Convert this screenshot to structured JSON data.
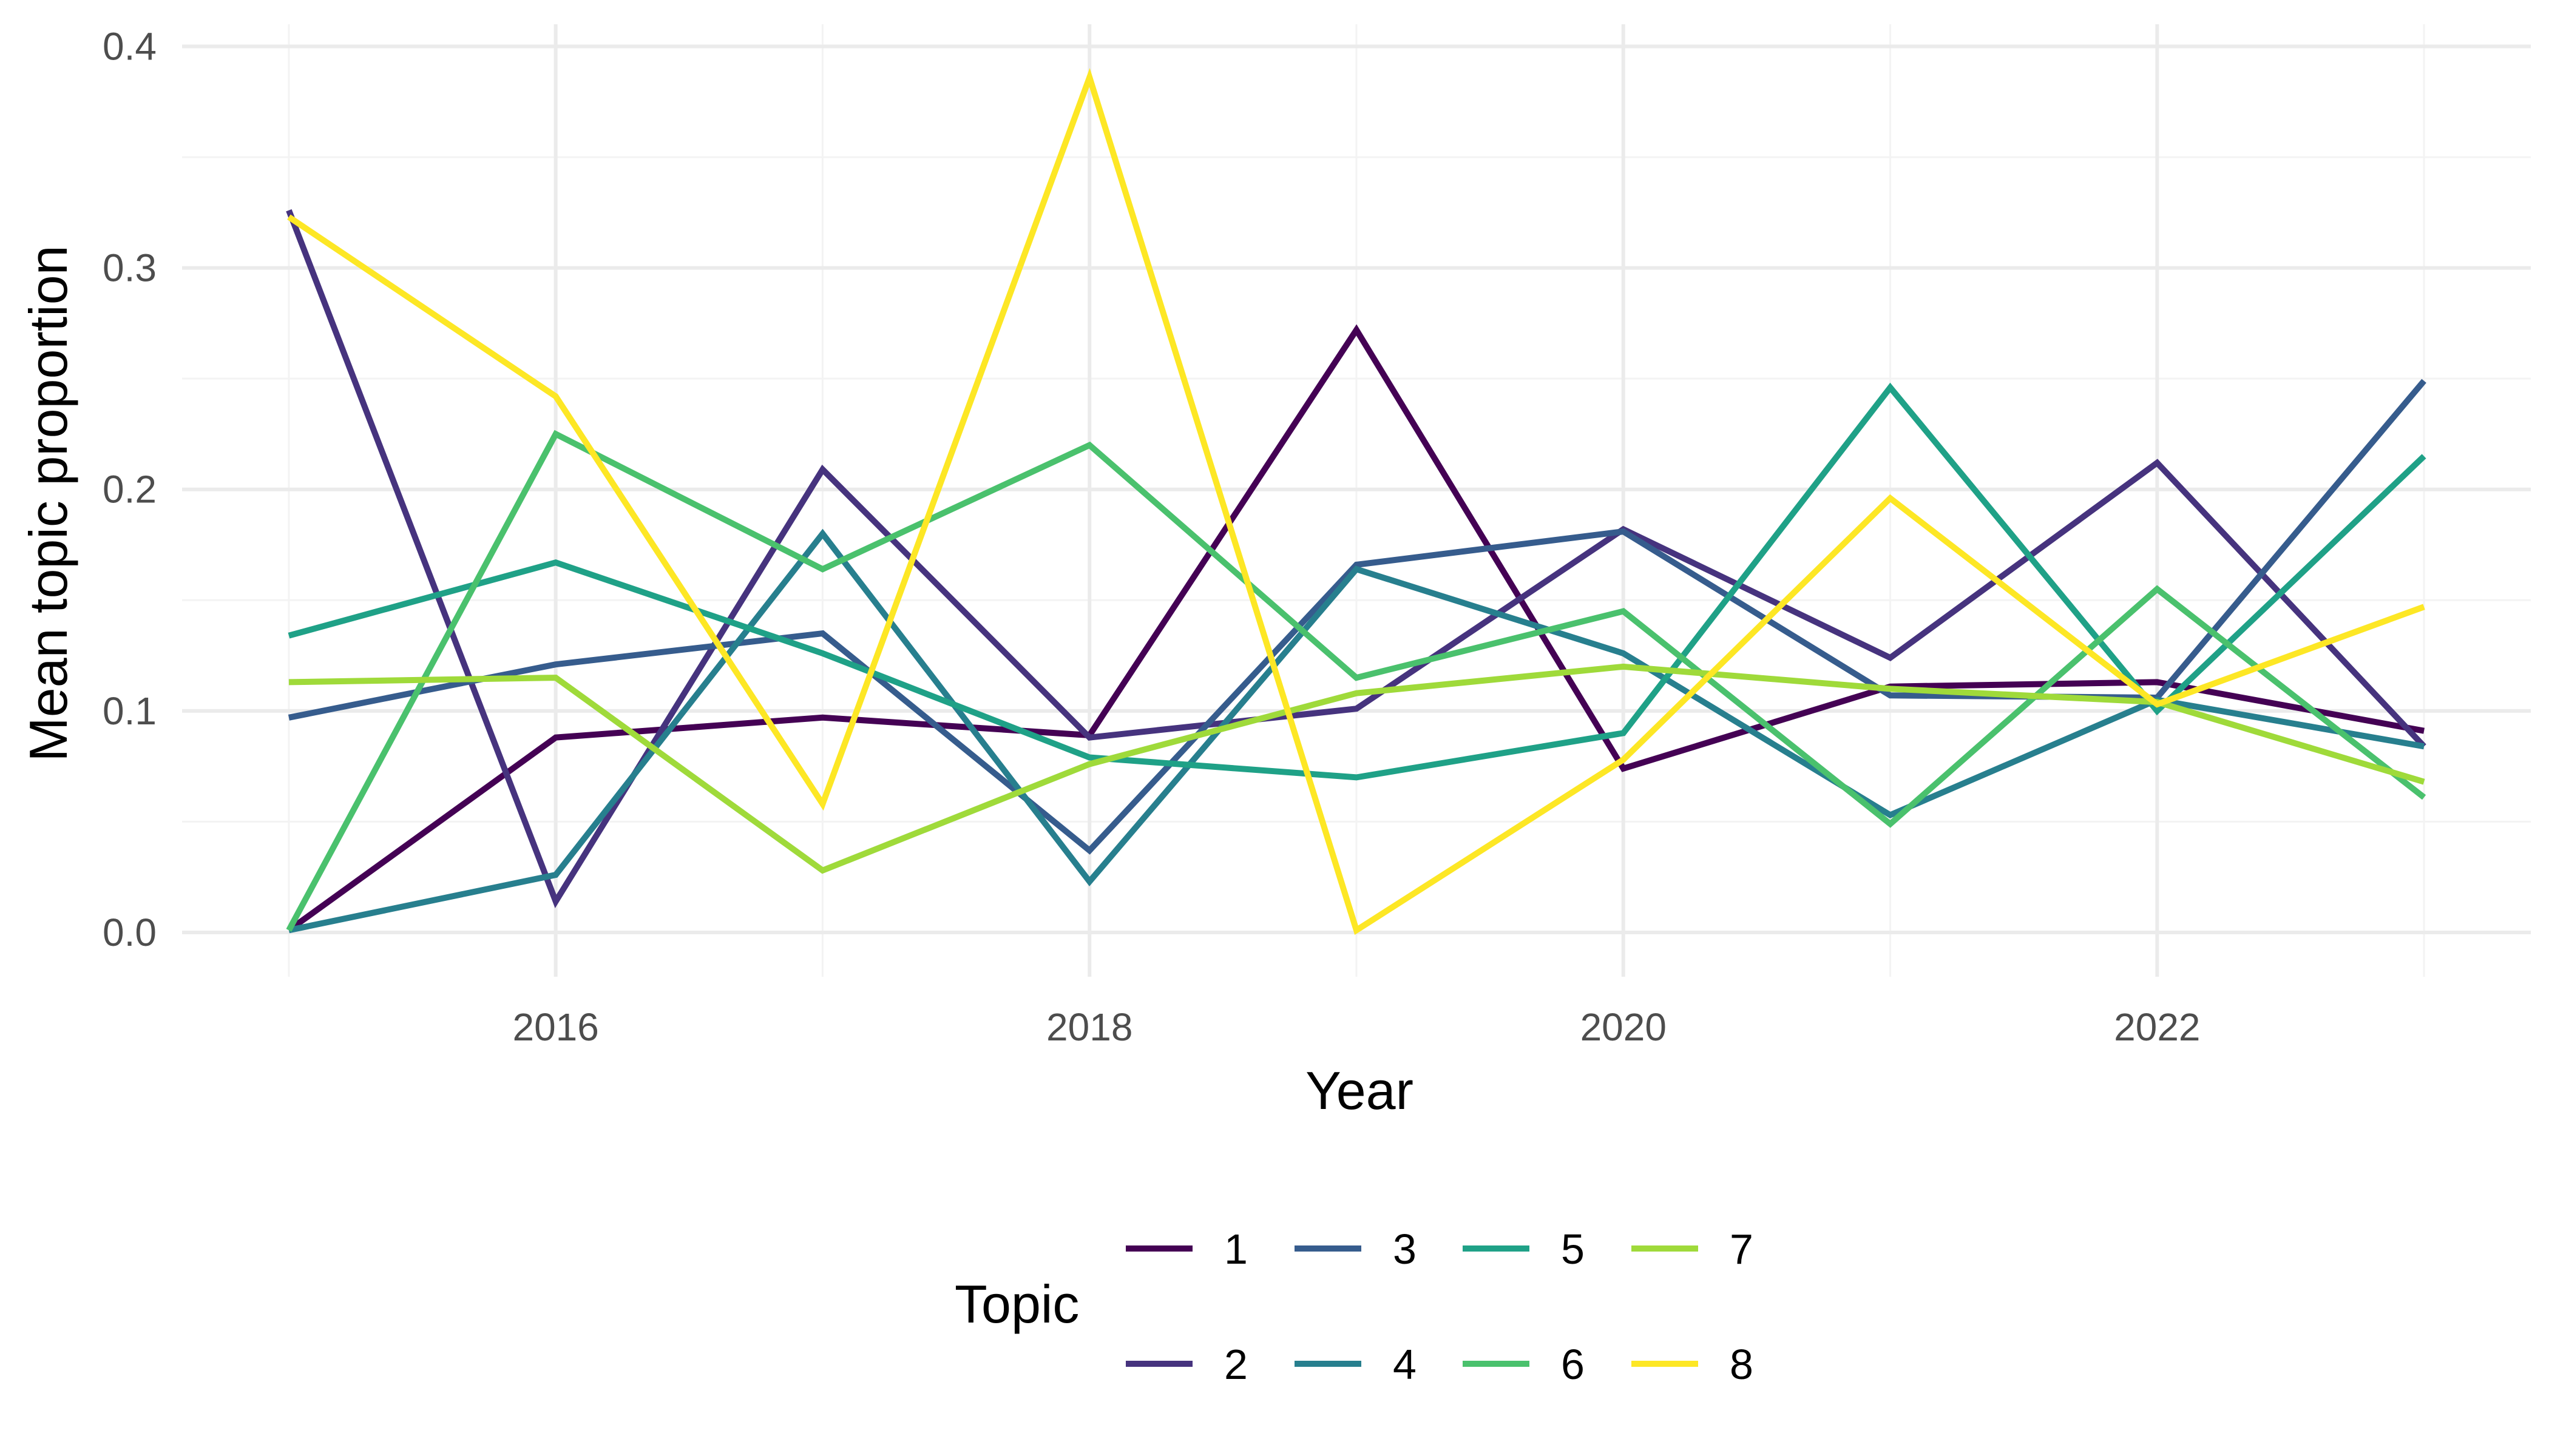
{
  "chart_data": {
    "type": "line",
    "title": "",
    "xlabel": "Year",
    "ylabel": "Mean topic proportion",
    "x": [
      2015,
      2016,
      2017,
      2018,
      2019,
      2020,
      2021,
      2022,
      2023
    ],
    "xlim": [
      2014.6,
      2023.4
    ],
    "ylim": [
      -0.02,
      0.41
    ],
    "x_ticks": [
      2016,
      2018,
      2020,
      2022
    ],
    "x_tick_labels": [
      "2016",
      "2018",
      "2020",
      "2022"
    ],
    "y_ticks": [
      0.0,
      0.1,
      0.2,
      0.3,
      0.4
    ],
    "y_tick_labels": [
      "0.0",
      "0.1",
      "0.2",
      "0.3",
      "0.4"
    ],
    "grid": true,
    "legend": {
      "title": "Topic",
      "position": "bottom"
    },
    "series": [
      {
        "name": "1",
        "color": "#440154",
        "values": [
          0.001,
          0.088,
          0.097,
          0.089,
          0.272,
          0.074,
          0.111,
          0.113,
          0.091
        ]
      },
      {
        "name": "2",
        "color": "#46337E",
        "values": [
          0.326,
          0.014,
          0.209,
          0.088,
          0.101,
          0.182,
          0.124,
          0.212,
          0.084
        ]
      },
      {
        "name": "3",
        "color": "#365C8D",
        "values": [
          0.097,
          0.121,
          0.135,
          0.037,
          0.166,
          0.181,
          0.107,
          0.106,
          0.249
        ]
      },
      {
        "name": "4",
        "color": "#277F8E",
        "values": [
          0.001,
          0.026,
          0.18,
          0.023,
          0.164,
          0.126,
          0.053,
          0.105,
          0.084
        ]
      },
      {
        "name": "5",
        "color": "#1FA187",
        "values": [
          0.134,
          0.167,
          0.126,
          0.079,
          0.07,
          0.09,
          0.246,
          0.1,
          0.215
        ]
      },
      {
        "name": "6",
        "color": "#4AC16D",
        "values": [
          0.001,
          0.225,
          0.164,
          0.22,
          0.115,
          0.145,
          0.049,
          0.155,
          0.061
        ]
      },
      {
        "name": "7",
        "color": "#9FDA3A",
        "values": [
          0.113,
          0.115,
          0.028,
          0.076,
          0.108,
          0.12,
          0.11,
          0.104,
          0.068
        ]
      },
      {
        "name": "8",
        "color": "#FDE725",
        "values": [
          0.323,
          0.242,
          0.058,
          0.386,
          0.001,
          0.078,
          0.196,
          0.103,
          0.147
        ]
      }
    ]
  }
}
